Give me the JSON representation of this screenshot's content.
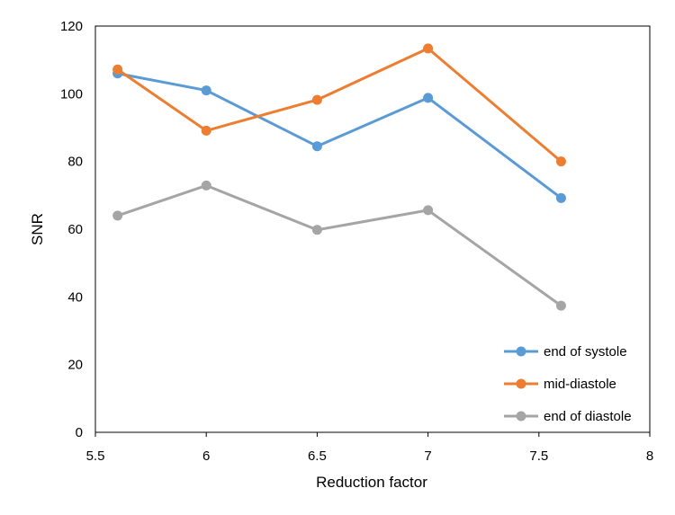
{
  "chart_data": {
    "type": "line",
    "title": "",
    "xlabel": "Reduction factor",
    "ylabel": "SNR",
    "xlim": [
      5.5,
      8
    ],
    "ylim": [
      0,
      120
    ],
    "xticks": [
      "5.5",
      "6",
      "6.5",
      "7",
      "7.5",
      "8"
    ],
    "xtick_values": [
      5.5,
      6,
      6.5,
      7,
      7.5,
      8
    ],
    "yticks": [
      "0",
      "20",
      "40",
      "60",
      "80",
      "100",
      "120"
    ],
    "ytick_values": [
      0,
      20,
      40,
      60,
      80,
      100,
      120
    ],
    "grid": false,
    "legend_position": "bottom-right",
    "x": [
      5.6,
      6.0,
      6.5,
      7.0,
      7.6
    ],
    "series": [
      {
        "name": "end of systole",
        "color": "#5B9BD5",
        "values": [
          106,
          101,
          84.5,
          98.8,
          69.2
        ]
      },
      {
        "name": "mid-diastole",
        "color": "#ED7D31",
        "values": [
          107.2,
          89.1,
          98.2,
          113.4,
          80
        ]
      },
      {
        "name": "end of diastole",
        "color": "#A5A5A5",
        "values": [
          64,
          72.9,
          59.8,
          65.6,
          37.4
        ]
      }
    ]
  }
}
